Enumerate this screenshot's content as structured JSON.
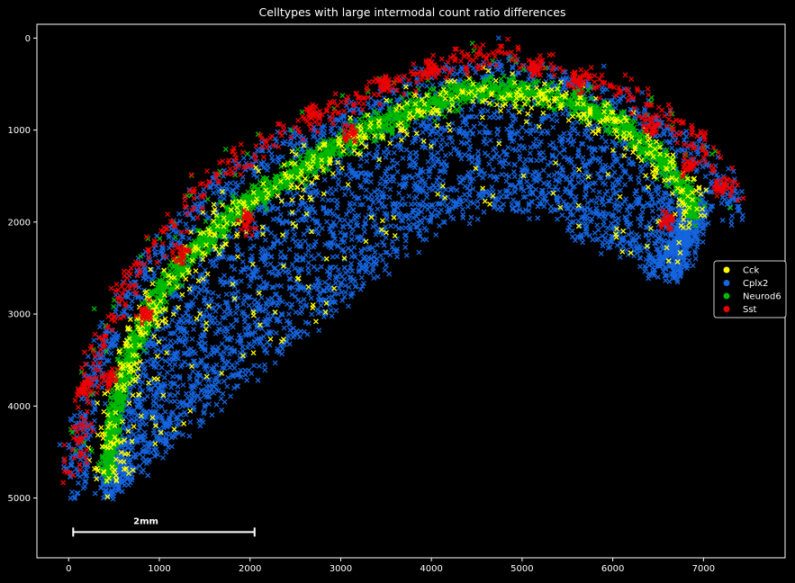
{
  "chart_data": {
    "type": "scatter",
    "title": "Celltypes with large intermodal count ratio differences",
    "xlabel": "",
    "ylabel": "",
    "xlim": [
      -350,
      7900
    ],
    "ylim": [
      5650,
      -150
    ],
    "y_inverted": true,
    "x_ticks": [
      0,
      1000,
      2000,
      3000,
      4000,
      5000,
      6000,
      7000
    ],
    "y_ticks": [
      0,
      1000,
      2000,
      3000,
      4000,
      5000
    ],
    "x_tick_labels": [
      "0",
      "1000",
      "2000",
      "3000",
      "4000",
      "5000",
      "6000",
      "7000"
    ],
    "y_tick_labels": [
      "0",
      "1000",
      "2000",
      "3000",
      "4000",
      "5000"
    ],
    "grid": false,
    "background": "#000000",
    "legend_position": "right",
    "marker": "x",
    "series": [
      {
        "name": "Cck",
        "color": "#ffff00"
      },
      {
        "name": "Cplx2",
        "color": "#1565e0"
      },
      {
        "name": "Neurod6",
        "color": "#00bb00"
      },
      {
        "name": "Sst",
        "color": "#ee0000"
      }
    ],
    "scale_bar": {
      "label": "2mm",
      "x_start": 50,
      "x_end": 2050,
      "y": 5370
    },
    "tissue_shape": {
      "outer_edge": [
        [
          60,
          4750
        ],
        [
          150,
          4050
        ],
        [
          320,
          3400
        ],
        [
          620,
          2750
        ],
        [
          1050,
          2150
        ],
        [
          1550,
          1600
        ],
        [
          2100,
          1180
        ],
        [
          2800,
          880
        ],
        [
          3500,
          550
        ],
        [
          4200,
          300
        ],
        [
          4700,
          220
        ],
        [
          5200,
          290
        ],
        [
          5800,
          490
        ],
        [
          6400,
          760
        ],
        [
          6900,
          1100
        ],
        [
          7250,
          1450
        ],
        [
          7350,
          1800
        ]
      ],
      "green_band": [
        [
          420,
          4800
        ],
        [
          500,
          4200
        ],
        [
          660,
          3550
        ],
        [
          960,
          2900
        ],
        [
          1360,
          2400
        ],
        [
          1900,
          1880
        ],
        [
          2600,
          1460
        ],
        [
          3300,
          1060
        ],
        [
          3900,
          800
        ],
        [
          4500,
          620
        ],
        [
          5000,
          640
        ],
        [
          5600,
          760
        ],
        [
          6100,
          1020
        ],
        [
          6500,
          1350
        ],
        [
          6800,
          1700
        ],
        [
          6920,
          2000
        ]
      ],
      "lower_edge_upper": [
        [
          420,
          5000
        ],
        [
          1200,
          4350
        ],
        [
          2000,
          3650
        ],
        [
          2800,
          3050
        ],
        [
          3500,
          2500
        ],
        [
          4200,
          2000
        ],
        [
          4700,
          1850
        ],
        [
          5200,
          1930
        ],
        [
          5800,
          2200
        ],
        [
          6300,
          2450
        ],
        [
          6700,
          2650
        ]
      ],
      "lower_edge_tip": [
        [
          6700,
          2650
        ],
        [
          7000,
          2200
        ],
        [
          7100,
          1850
        ]
      ]
    }
  }
}
